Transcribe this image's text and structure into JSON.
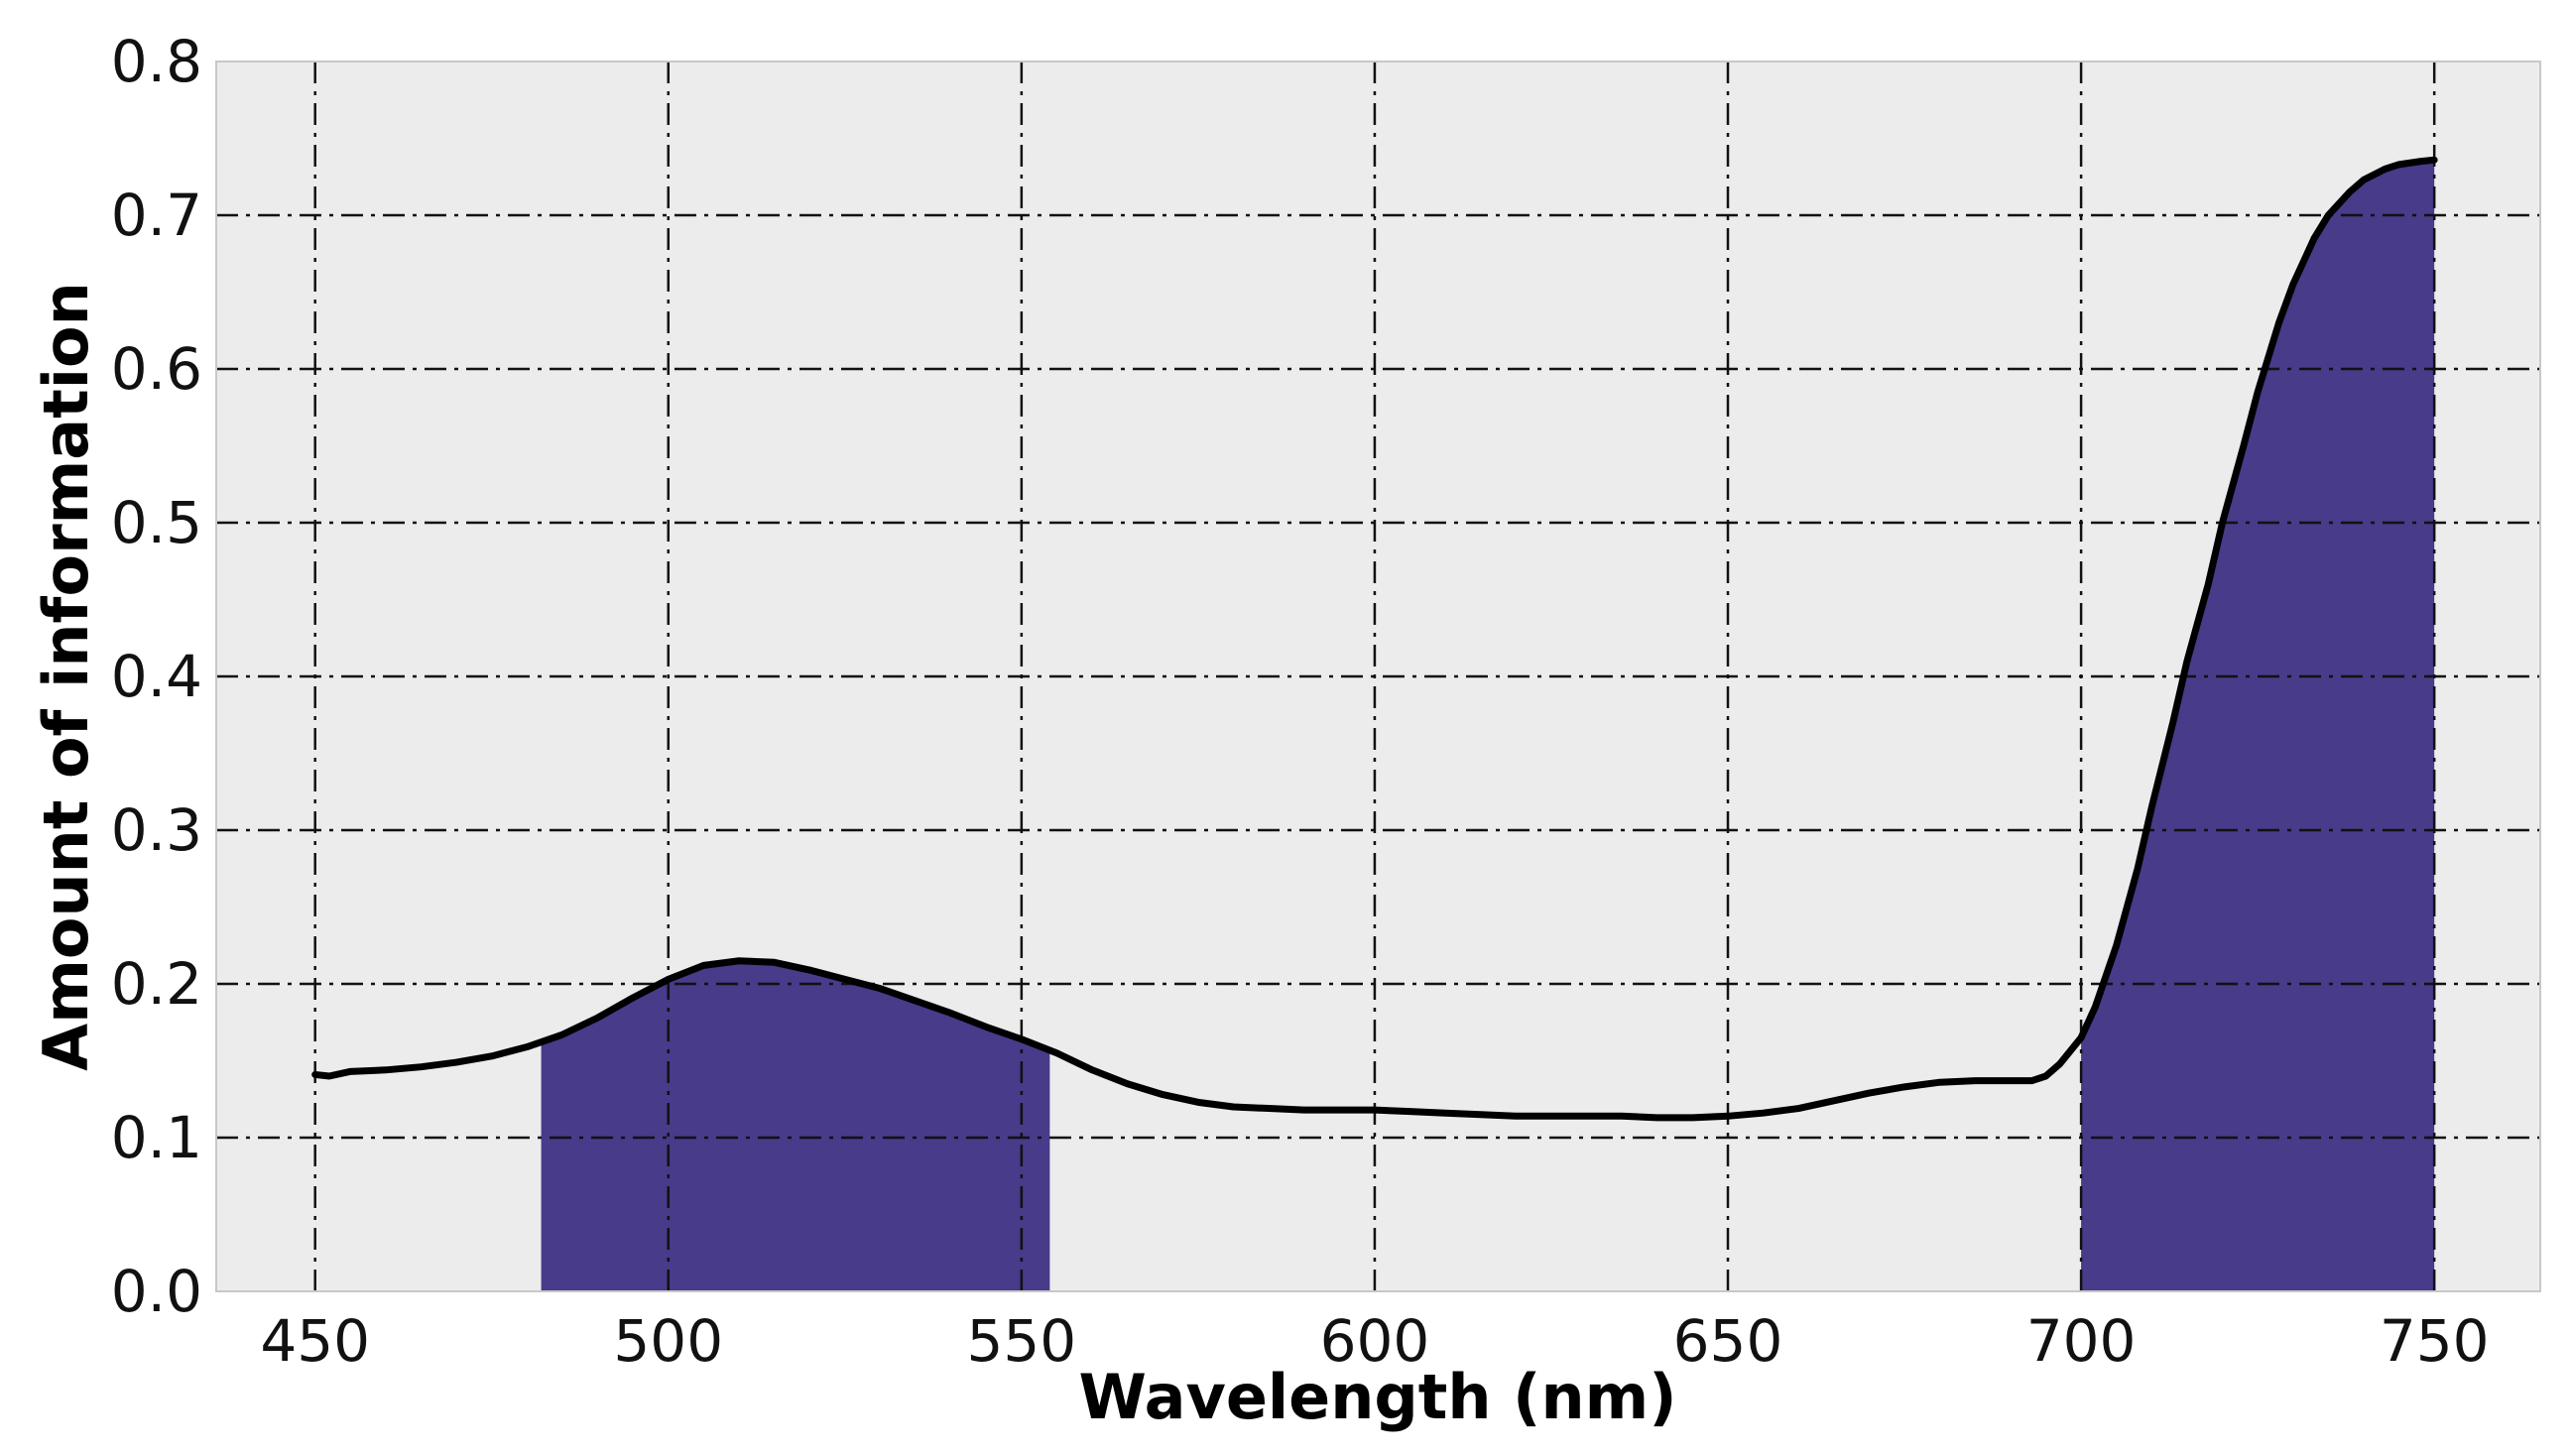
{
  "chart_data": {
    "type": "line",
    "title": "",
    "xlabel": "Wavelength (nm)",
    "ylabel": "Amount of information",
    "xlim": [
      436,
      765
    ],
    "ylim": [
      0.0,
      0.8
    ],
    "xticks": [
      450,
      500,
      550,
      600,
      650,
      700,
      750
    ],
    "xtick_labels": [
      "450",
      "500",
      "550",
      "600",
      "650",
      "700",
      "750"
    ],
    "yticks": [
      0.0,
      0.1,
      0.2,
      0.3,
      0.4,
      0.5,
      0.6,
      0.7,
      0.8
    ],
    "ytick_labels": [
      "0.0",
      "0.1",
      "0.2",
      "0.3",
      "0.4",
      "0.5",
      "0.6",
      "0.7",
      "0.8"
    ],
    "grid": true,
    "series": [
      {
        "name": "Amount of information",
        "x": [
          450,
          452,
          455,
          460,
          465,
          470,
          475,
          480,
          485,
          490,
          495,
          500,
          505,
          510,
          515,
          520,
          525,
          530,
          535,
          540,
          545,
          550,
          555,
          560,
          565,
          570,
          575,
          580,
          585,
          590,
          595,
          600,
          605,
          610,
          615,
          620,
          625,
          630,
          635,
          640,
          645,
          650,
          655,
          660,
          665,
          670,
          675,
          680,
          685,
          690,
          693,
          695,
          697,
          700,
          702,
          705,
          708,
          710,
          713,
          715,
          718,
          720,
          723,
          725,
          728,
          730,
          733,
          735,
          738,
          740,
          743,
          745,
          748,
          750
        ],
        "y": [
          0.141,
          0.14,
          0.143,
          0.144,
          0.146,
          0.149,
          0.153,
          0.159,
          0.167,
          0.178,
          0.191,
          0.203,
          0.212,
          0.215,
          0.214,
          0.209,
          0.203,
          0.197,
          0.189,
          0.181,
          0.172,
          0.164,
          0.155,
          0.144,
          0.135,
          0.128,
          0.123,
          0.12,
          0.119,
          0.118,
          0.118,
          0.118,
          0.117,
          0.116,
          0.115,
          0.114,
          0.114,
          0.114,
          0.114,
          0.113,
          0.113,
          0.114,
          0.116,
          0.119,
          0.124,
          0.129,
          0.133,
          0.136,
          0.137,
          0.137,
          0.137,
          0.14,
          0.148,
          0.165,
          0.185,
          0.225,
          0.275,
          0.315,
          0.37,
          0.41,
          0.46,
          0.5,
          0.55,
          0.585,
          0.63,
          0.655,
          0.685,
          0.7,
          0.715,
          0.723,
          0.73,
          0.733,
          0.735,
          0.736
        ]
      }
    ],
    "shaded_regions": [
      {
        "from": 482,
        "to": 554,
        "color": "#473b8a"
      },
      {
        "from": 700,
        "to": 750,
        "color": "#473b8a"
      }
    ],
    "colors": {
      "plot_background": "#ececec",
      "line": "#000000",
      "grid": "#111111"
    }
  }
}
